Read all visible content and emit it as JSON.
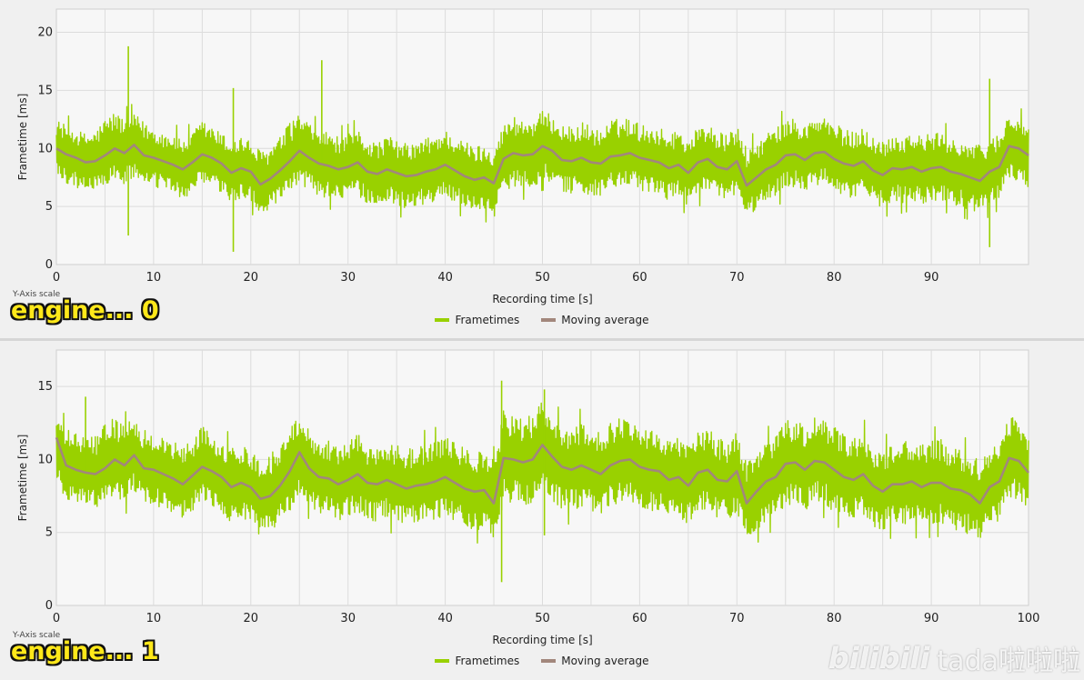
{
  "colors": {
    "frametimes": "#99d100",
    "moving_average": "#a2877c",
    "grid": "#dcdcdc",
    "plot_bg": "#f7f7f7",
    "label_fill": "#ffe81a"
  },
  "watermark": {
    "logo": "bilibili",
    "text": "tada啦啦啦"
  },
  "chart_data": [
    {
      "type": "line",
      "title": "",
      "xlabel": "Recording time [s]",
      "ylabel": "Frametime [ms]",
      "y_scale_label": "Y-Axis scale",
      "engine_label": "engine... 0",
      "xlim": [
        0,
        100
      ],
      "ylim": [
        0,
        22
      ],
      "xticks": [
        0,
        10,
        20,
        30,
        40,
        50,
        60,
        70,
        80,
        90
      ],
      "yticks": [
        0,
        5,
        10,
        15,
        20
      ],
      "grid": true,
      "legend": [
        "Frametimes",
        "Moving average"
      ],
      "legend_position": "bottom-center",
      "series": [
        {
          "name": "Moving average",
          "x": [
            0,
            1,
            2,
            3,
            4,
            5,
            6,
            7,
            8,
            9,
            10,
            11,
            12,
            13,
            14,
            15,
            16,
            17,
            18,
            19,
            20,
            21,
            22,
            23,
            24,
            25,
            26,
            27,
            28,
            29,
            30,
            31,
            32,
            33,
            34,
            35,
            36,
            37,
            38,
            39,
            40,
            41,
            42,
            43,
            44,
            45,
            46,
            47,
            48,
            49,
            50,
            51,
            52,
            53,
            54,
            55,
            56,
            57,
            58,
            59,
            60,
            61,
            62,
            63,
            64,
            65,
            66,
            67,
            68,
            69,
            70,
            71,
            72,
            73,
            74,
            75,
            76,
            77,
            78,
            79,
            80,
            81,
            82,
            83,
            84,
            85,
            86,
            87,
            88,
            89,
            90,
            91,
            92,
            93,
            94,
            95,
            96,
            97,
            98,
            99,
            100
          ],
          "values": [
            10.0,
            9.5,
            9.2,
            8.8,
            8.9,
            9.4,
            10.0,
            9.6,
            10.3,
            9.4,
            9.2,
            8.9,
            8.6,
            8.2,
            8.8,
            9.5,
            9.2,
            8.7,
            7.9,
            8.3,
            8.0,
            6.9,
            7.4,
            8.1,
            8.9,
            9.8,
            9.2,
            8.7,
            8.5,
            8.2,
            8.4,
            8.8,
            8.0,
            7.8,
            8.2,
            7.9,
            7.6,
            7.7,
            8.0,
            8.2,
            8.6,
            8.1,
            7.6,
            7.3,
            7.5,
            7.0,
            9.1,
            9.6,
            9.4,
            9.5,
            10.2,
            9.8,
            9.0,
            8.9,
            9.2,
            8.8,
            8.7,
            9.3,
            9.4,
            9.6,
            9.2,
            9.0,
            8.8,
            8.3,
            8.6,
            7.9,
            8.8,
            9.1,
            8.4,
            8.2,
            8.9,
            6.8,
            7.5,
            8.2,
            8.6,
            9.4,
            9.5,
            9.0,
            9.6,
            9.7,
            9.1,
            8.7,
            8.5,
            8.9,
            8.1,
            7.7,
            8.3,
            8.2,
            8.4,
            8.0,
            8.3,
            8.4,
            8.0,
            7.8,
            7.5,
            7.2,
            8.0,
            8.4,
            10.2,
            10.0,
            9.4
          ]
        },
        {
          "name": "Frametimes",
          "envelope_upper": [
            12.5,
            12.0,
            11.6,
            11.3,
            11.5,
            12.6,
            13.2,
            12.6,
            13.0,
            12.3,
            11.8,
            11.4,
            11.3,
            10.8,
            11.4,
            12.4,
            11.9,
            11.3,
            10.7,
            11.1,
            10.6,
            9.8,
            10.1,
            11.0,
            12.2,
            13.1,
            12.1,
            11.7,
            11.4,
            11.0,
            11.2,
            11.7,
            10.9,
            10.5,
            11.1,
            10.7,
            10.4,
            10.5,
            10.9,
            11.2,
            11.6,
            11.1,
            10.6,
            10.3,
            10.3,
            10.2,
            12.0,
            12.9,
            12.5,
            12.6,
            13.2,
            12.9,
            12.1,
            11.8,
            12.3,
            12.0,
            11.5,
            12.4,
            12.6,
            12.7,
            12.1,
            12.0,
            11.8,
            11.4,
            11.7,
            11.0,
            11.8,
            12.2,
            11.5,
            11.1,
            12.0,
            10.0,
            10.6,
            11.3,
            11.8,
            12.6,
            12.6,
            12.0,
            12.8,
            12.7,
            12.2,
            11.7,
            11.4,
            11.9,
            11.0,
            10.7,
            11.3,
            11.2,
            11.4,
            11.1,
            11.3,
            11.5,
            11.0,
            10.8,
            10.5,
            10.3,
            10.9,
            11.3,
            13.0,
            12.7,
            12.0
          ],
          "envelope_lower": [
            7.4,
            7.0,
            6.6,
            6.4,
            6.5,
            6.8,
            7.2,
            6.8,
            7.5,
            6.7,
            6.6,
            6.4,
            6.1,
            5.6,
            6.2,
            6.8,
            6.5,
            6.1,
            5.2,
            5.6,
            5.4,
            4.2,
            4.6,
            5.3,
            6.0,
            6.9,
            6.4,
            5.8,
            5.7,
            5.4,
            5.6,
            6.0,
            5.2,
            5.0,
            5.4,
            5.1,
            4.8,
            4.9,
            5.2,
            5.4,
            5.8,
            5.3,
            4.9,
            4.6,
            4.7,
            4.0,
            6.3,
            6.7,
            6.5,
            6.6,
            7.3,
            6.9,
            6.2,
            6.0,
            6.3,
            5.9,
            5.9,
            6.4,
            6.5,
            6.7,
            6.3,
            6.1,
            5.9,
            5.5,
            5.8,
            5.0,
            5.9,
            6.2,
            5.6,
            5.4,
            6.1,
            4.1,
            4.7,
            5.3,
            5.8,
            6.5,
            6.6,
            6.2,
            6.7,
            6.8,
            6.2,
            5.9,
            5.7,
            6.1,
            5.3,
            4.8,
            5.4,
            5.3,
            5.6,
            5.1,
            5.4,
            5.5,
            5.2,
            5.0,
            4.7,
            4.3,
            5.1,
            5.6,
            7.3,
            7.0,
            6.6
          ],
          "spikes": [
            [
              7.4,
              18.8
            ],
            [
              7.4,
              2.5
            ],
            [
              18.2,
              15.2
            ],
            [
              18.2,
              1.1
            ],
            [
              27.3,
              17.6
            ],
            [
              96.0,
              16.0
            ],
            [
              96.0,
              1.5
            ]
          ]
        }
      ]
    },
    {
      "type": "line",
      "title": "",
      "xlabel": "Recording time [s]",
      "ylabel": "Frametime [ms]",
      "y_scale_label": "Y-Axis scale",
      "engine_label": "engine... 1",
      "xlim": [
        0,
        100
      ],
      "ylim": [
        0,
        17.5
      ],
      "xticks": [
        0,
        10,
        20,
        30,
        40,
        50,
        60,
        70,
        80,
        90,
        100
      ],
      "yticks": [
        0,
        5,
        10,
        15
      ],
      "grid": true,
      "legend": [
        "Frametimes",
        "Moving average"
      ],
      "legend_position": "bottom-center",
      "series": [
        {
          "name": "Moving average",
          "x": [
            0,
            1,
            2,
            3,
            4,
            5,
            6,
            7,
            8,
            9,
            10,
            11,
            12,
            13,
            14,
            15,
            16,
            17,
            18,
            19,
            20,
            21,
            22,
            23,
            24,
            25,
            26,
            27,
            28,
            29,
            30,
            31,
            32,
            33,
            34,
            35,
            36,
            37,
            38,
            39,
            40,
            41,
            42,
            43,
            44,
            45,
            46,
            47,
            48,
            49,
            50,
            51,
            52,
            53,
            54,
            55,
            56,
            57,
            58,
            59,
            60,
            61,
            62,
            63,
            64,
            65,
            66,
            67,
            68,
            69,
            70,
            71,
            72,
            73,
            74,
            75,
            76,
            77,
            78,
            79,
            80,
            81,
            82,
            83,
            84,
            85,
            86,
            87,
            88,
            89,
            90,
            91,
            92,
            93,
            94,
            95,
            96,
            97,
            98,
            99,
            100
          ],
          "values": [
            11.5,
            9.6,
            9.3,
            9.1,
            9.0,
            9.4,
            10.0,
            9.6,
            10.3,
            9.4,
            9.3,
            9.0,
            8.7,
            8.3,
            8.9,
            9.5,
            9.2,
            8.8,
            8.1,
            8.4,
            8.1,
            7.3,
            7.5,
            8.2,
            9.2,
            10.5,
            9.4,
            8.8,
            8.7,
            8.3,
            8.6,
            9.0,
            8.4,
            8.3,
            8.6,
            8.3,
            8.0,
            8.2,
            8.3,
            8.5,
            8.8,
            8.4,
            8.0,
            7.8,
            7.9,
            7.0,
            10.1,
            10.0,
            9.8,
            10.0,
            11.0,
            10.2,
            9.5,
            9.3,
            9.6,
            9.3,
            9.0,
            9.6,
            9.9,
            10.0,
            9.5,
            9.3,
            9.2,
            8.6,
            8.8,
            8.2,
            9.1,
            9.3,
            8.6,
            8.5,
            9.2,
            7.0,
            7.8,
            8.5,
            8.8,
            9.7,
            9.8,
            9.3,
            9.9,
            9.8,
            9.3,
            8.8,
            8.6,
            9.0,
            8.2,
            7.8,
            8.3,
            8.3,
            8.5,
            8.1,
            8.4,
            8.4,
            8.0,
            7.9,
            7.6,
            7.0,
            8.1,
            8.5,
            10.1,
            9.9,
            9.1
          ]
        },
        {
          "name": "Frametimes",
          "envelope_upper": [
            12.8,
            12.1,
            11.8,
            11.6,
            11.7,
            12.4,
            13.0,
            12.3,
            12.9,
            12.1,
            11.8,
            11.6,
            11.3,
            10.9,
            11.5,
            12.3,
            11.8,
            11.4,
            10.8,
            11.1,
            10.8,
            10.0,
            10.4,
            11.0,
            12.2,
            13.4,
            12.1,
            11.5,
            11.4,
            11.0,
            11.3,
            11.8,
            11.0,
            10.9,
            11.4,
            11.0,
            10.8,
            11.0,
            11.1,
            11.3,
            11.7,
            11.2,
            10.8,
            10.6,
            10.7,
            10.0,
            13.4,
            13.1,
            12.8,
            13.2,
            14.0,
            13.2,
            12.4,
            12.2,
            12.6,
            12.2,
            11.8,
            12.6,
            12.9,
            13.0,
            12.3,
            12.2,
            12.0,
            11.4,
            11.6,
            10.9,
            11.9,
            12.2,
            11.5,
            11.2,
            12.0,
            9.9,
            10.6,
            11.3,
            11.6,
            12.7,
            12.8,
            12.2,
            12.9,
            12.8,
            12.3,
            11.7,
            11.5,
            11.9,
            11.0,
            10.6,
            11.2,
            11.2,
            11.4,
            11.0,
            11.3,
            11.4,
            10.9,
            10.8,
            10.4,
            10.0,
            10.9,
            11.4,
            13.0,
            12.8,
            12.0
          ],
          "envelope_lower": [
            7.8,
            7.3,
            7.1,
            6.9,
            6.7,
            7.0,
            7.4,
            7.1,
            7.7,
            6.9,
            6.9,
            6.6,
            6.3,
            5.9,
            6.5,
            7.0,
            6.8,
            6.4,
            5.6,
            5.9,
            5.6,
            4.6,
            4.8,
            5.6,
            6.3,
            7.6,
            6.8,
            6.2,
            6.2,
            5.8,
            6.1,
            6.4,
            5.9,
            5.7,
            6.0,
            5.7,
            5.4,
            5.6,
            5.7,
            5.9,
            6.1,
            5.8,
            5.4,
            5.1,
            5.3,
            4.3,
            7.0,
            7.0,
            6.8,
            7.0,
            7.9,
            7.2,
            6.6,
            6.4,
            6.7,
            6.4,
            6.2,
            6.8,
            7.0,
            7.1,
            6.7,
            6.5,
            6.4,
            5.8,
            6.1,
            5.4,
            6.3,
            6.5,
            5.9,
            5.8,
            6.4,
            4.5,
            5.1,
            5.8,
            6.0,
            6.8,
            7.0,
            6.5,
            7.0,
            6.9,
            6.4,
            6.0,
            5.8,
            6.2,
            5.4,
            5.0,
            5.6,
            5.5,
            5.7,
            5.3,
            5.6,
            5.6,
            5.2,
            5.1,
            4.8,
            4.3,
            5.3,
            5.8,
            7.4,
            7.2,
            6.7
          ],
          "spikes": [
            [
              3.0,
              14.3
            ],
            [
              45.8,
              15.4
            ],
            [
              45.8,
              1.6
            ],
            [
              50.2,
              14.8
            ],
            [
              50.2,
              4.8
            ]
          ]
        }
      ]
    }
  ]
}
